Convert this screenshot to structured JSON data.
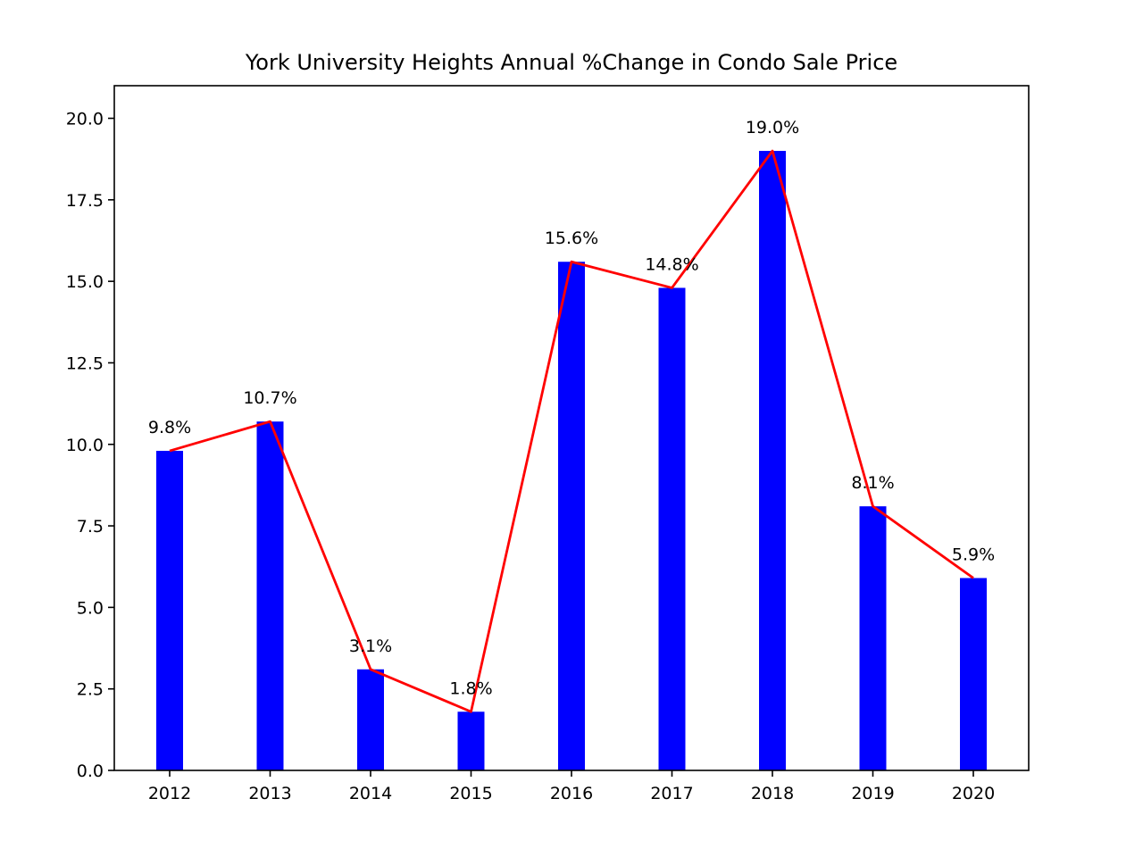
{
  "chart_data": {
    "type": "bar",
    "title": "York University Heights Annual %Change in Condo Sale Price",
    "xlabel": "",
    "ylabel": "",
    "categories": [
      "2012",
      "2013",
      "2014",
      "2015",
      "2016",
      "2017",
      "2018",
      "2019",
      "2020"
    ],
    "values": [
      9.8,
      10.7,
      3.1,
      1.8,
      15.6,
      14.8,
      19.0,
      8.1,
      5.9
    ],
    "data_labels": [
      "9.8%",
      "10.7%",
      "3.1%",
      "1.8%",
      "15.6%",
      "14.8%",
      "19.0%",
      "8.1%",
      "5.9%"
    ],
    "overlay_line": {
      "type": "line",
      "values": [
        9.8,
        10.7,
        3.1,
        1.8,
        15.6,
        14.8,
        19.0,
        8.1,
        5.9
      ]
    },
    "ylim": [
      0,
      21
    ],
    "yticks": [
      0.0,
      2.5,
      5.0,
      7.5,
      10.0,
      12.5,
      15.0,
      17.5,
      20.0
    ],
    "ytick_labels": [
      "0.0",
      "2.5",
      "5.0",
      "7.5",
      "10.0",
      "12.5",
      "15.0",
      "17.5",
      "20.0"
    ],
    "grid": false,
    "legend": "none",
    "colors": {
      "bar": "#0000ff",
      "line": "#ff0000",
      "axis": "#000000"
    }
  }
}
